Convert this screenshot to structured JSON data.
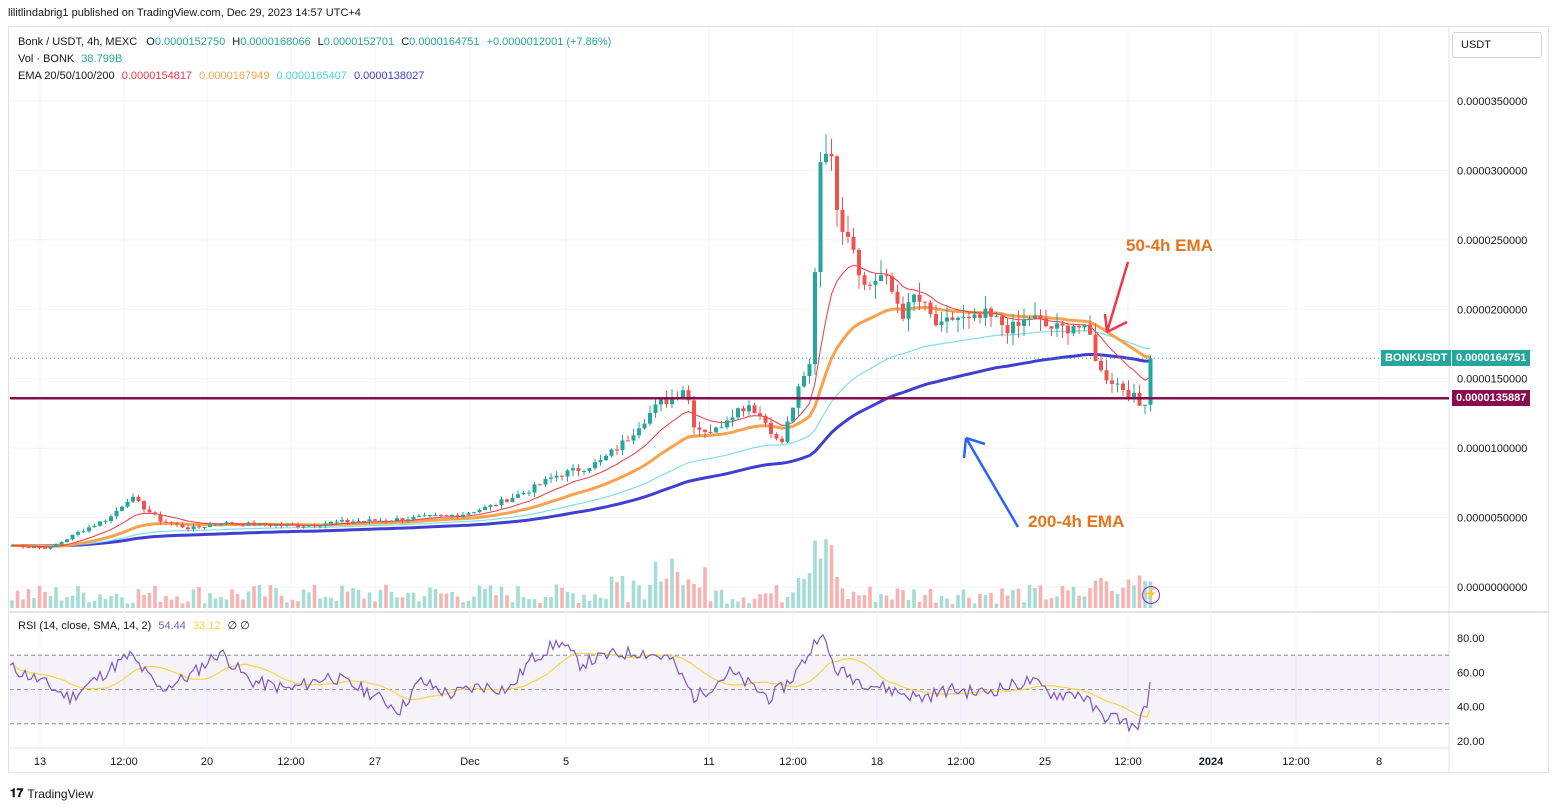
{
  "header": {
    "publish_text": "lilitlindabrig1 published on TradingView.com, Dec 29, 2023 14:57 UTC+4"
  },
  "legend": {
    "symbol": "Bonk / USDT, 4h, MEXC",
    "o_label": "O",
    "o_value": "0.0000152750",
    "h_label": "H",
    "h_value": "0.0000168066",
    "l_label": "L",
    "l_value": "0.0000152701",
    "c_label": "C",
    "c_value": "0.0000164751",
    "change": "+0.0000012001 (+7.86%)",
    "vol_label": "Vol · BONK",
    "vol_value": "38.799B",
    "ema_label": "EMA 20/50/100/200",
    "ema20": "0.0000154817",
    "ema50": "0.0000167949",
    "ema100": "0.0000165407",
    "ema200": "0.0000138027"
  },
  "currency": "USDT",
  "price_tags": {
    "symbol_label": "BONKUSDT",
    "last_price": "0.0000164751",
    "level_price": "0.0000135887"
  },
  "annotations": {
    "ema50_label": "50-4h EMA",
    "ema200_label": "200-4h EMA"
  },
  "rsi_legend": {
    "label": "RSI (14, close, SMA, 14, 2)",
    "rsi": "54.44",
    "sma": "33.12",
    "extra": "∅ ∅"
  },
  "footer": {
    "brand": "TradingView"
  },
  "colors": {
    "up": "#26a69a",
    "down": "#ef5350",
    "ema20": "#f23645",
    "ema50": "#f7a24f",
    "ema100": "#80deea",
    "ema200": "#3f3fd1",
    "level_line": "#880e4f",
    "rsi_line": "#7e57c2",
    "rsi_sma": "#f5d547",
    "bonk_tag": "#26a69a"
  },
  "chart_data": [
    {
      "type": "candlestick",
      "title": "Bonk / USDT, 4h, MEXC",
      "x_ticks": [
        "13",
        "12:00",
        "20",
        "12:00",
        "27",
        "Dec",
        "5",
        "11",
        "12:00",
        "18",
        "12:00",
        "25",
        "12:00",
        "2024",
        "12:00",
        "8"
      ],
      "y_ticks": [
        "0.0000350000",
        "0.0000300000",
        "0.0000250000",
        "0.0000200000",
        "0.0000150000",
        "0.0000100000",
        "0.0000050000",
        "0.0000000000"
      ],
      "ylim": [
        0,
        3.75e-05
      ],
      "horizontal_level": 1.35887e-05,
      "last_close": 1.64751e-05,
      "series": [
        {
          "name": "Price",
          "close_keypoints": [
            [
              0,
              3e-06
            ],
            [
              40,
              2.8e-06
            ],
            [
              70,
              4e-06
            ],
            [
              100,
              5e-06
            ],
            [
              120,
              6.5e-06
            ],
            [
              150,
              4.8e-06
            ],
            [
              180,
              4.2e-06
            ],
            [
              210,
              4.6e-06
            ],
            [
              250,
              4.5e-06
            ],
            [
              290,
              4.4e-06
            ],
            [
              330,
              4.7e-06
            ],
            [
              370,
              4.8e-06
            ],
            [
              410,
              5e-06
            ],
            [
              450,
              5.2e-06
            ],
            [
              480,
              5.8e-06
            ],
            [
              520,
              7e-06
            ],
            [
              545,
              8e-06
            ],
            [
              570,
              8.5e-06
            ],
            [
              590,
              9e-06
            ],
            [
              615,
              1.05e-05
            ],
            [
              630,
              1.18e-05
            ],
            [
              650,
              1.32e-05
            ],
            [
              665,
              1.38e-05
            ],
            [
              675,
              1.45e-05
            ],
            [
              685,
              1.15e-05
            ],
            [
              705,
              1.12e-05
            ],
            [
              720,
              1.25e-05
            ],
            [
              740,
              1.32e-05
            ],
            [
              760,
              1.15e-05
            ],
            [
              770,
              1e-05
            ],
            [
              785,
              1.35e-05
            ],
            [
              800,
              1.6e-05
            ],
            [
              805,
              2.3e-05
            ],
            [
              812,
              3.3e-05
            ],
            [
              820,
              3.1e-05
            ],
            [
              830,
              2.65e-05
            ],
            [
              840,
              2.55e-05
            ],
            [
              855,
              2.15e-05
            ],
            [
              870,
              2.25e-05
            ],
            [
              880,
              2.15e-05
            ],
            [
              895,
              1.95e-05
            ],
            [
              905,
              2.1e-05
            ],
            [
              915,
              2e-05
            ],
            [
              930,
              1.85e-05
            ],
            [
              945,
              1.95e-05
            ],
            [
              960,
              1.9e-05
            ],
            [
              975,
              1.95e-05
            ],
            [
              990,
              1.9e-05
            ],
            [
              1005,
              1.85e-05
            ],
            [
              1020,
              1.95e-05
            ],
            [
              1035,
              1.88e-05
            ],
            [
              1050,
              1.85e-05
            ],
            [
              1065,
              1.9e-05
            ],
            [
              1080,
              1.8e-05
            ],
            [
              1090,
              1.55e-05
            ],
            [
              1100,
              1.5e-05
            ],
            [
              1110,
              1.45e-05
            ],
            [
              1120,
              1.4e-05
            ],
            [
              1130,
              1.3e-05
            ],
            [
              1140,
              1.4e-05
            ],
            [
              1146,
              1.53e-05
            ],
            [
              1152,
              1.65e-05
            ]
          ]
        },
        {
          "name": "EMA 20",
          "value_last": 1.54817e-05
        },
        {
          "name": "EMA 50",
          "value_last": 1.67949e-05
        },
        {
          "name": "EMA 100",
          "value_last": 1.65407e-05
        },
        {
          "name": "EMA 200",
          "value_last": 1.38027e-05
        }
      ]
    },
    {
      "type": "line",
      "title": "RSI (14, close, SMA, 14, 2)",
      "y_ticks": [
        "80.00",
        "60.00",
        "40.00",
        "20.00"
      ],
      "ylim": [
        15,
        90
      ],
      "band": [
        30,
        70
      ],
      "mid": 50,
      "series": [
        {
          "name": "RSI",
          "last": 54.44,
          "keypoints": [
            [
              0,
              63
            ],
            [
              30,
              55
            ],
            [
              60,
              45
            ],
            [
              100,
              62
            ],
            [
              120,
              70
            ],
            [
              150,
              50
            ],
            [
              180,
              58
            ],
            [
              210,
              72
            ],
            [
              240,
              55
            ],
            [
              280,
              50
            ],
            [
              320,
              58
            ],
            [
              360,
              48
            ],
            [
              390,
              38
            ],
            [
              410,
              55
            ],
            [
              440,
              47
            ],
            [
              470,
              52
            ],
            [
              500,
              50
            ],
            [
              520,
              67
            ],
            [
              550,
              78
            ],
            [
              570,
              65
            ],
            [
              600,
              70
            ],
            [
              630,
              72
            ],
            [
              660,
              68
            ],
            [
              685,
              45
            ],
            [
              720,
              60
            ],
            [
              760,
              45
            ],
            [
              780,
              55
            ],
            [
              800,
              72
            ],
            [
              810,
              84
            ],
            [
              825,
              62
            ],
            [
              850,
              55
            ],
            [
              880,
              50
            ],
            [
              910,
              45
            ],
            [
              940,
              50
            ],
            [
              970,
              48
            ],
            [
              1000,
              52
            ],
            [
              1020,
              55
            ],
            [
              1045,
              47
            ],
            [
              1070,
              48
            ],
            [
              1090,
              35
            ],
            [
              1110,
              33
            ],
            [
              1125,
              27
            ],
            [
              1135,
              38
            ],
            [
              1152,
              54
            ]
          ]
        },
        {
          "name": "RSI SMA",
          "last": 33.12
        }
      ]
    }
  ]
}
